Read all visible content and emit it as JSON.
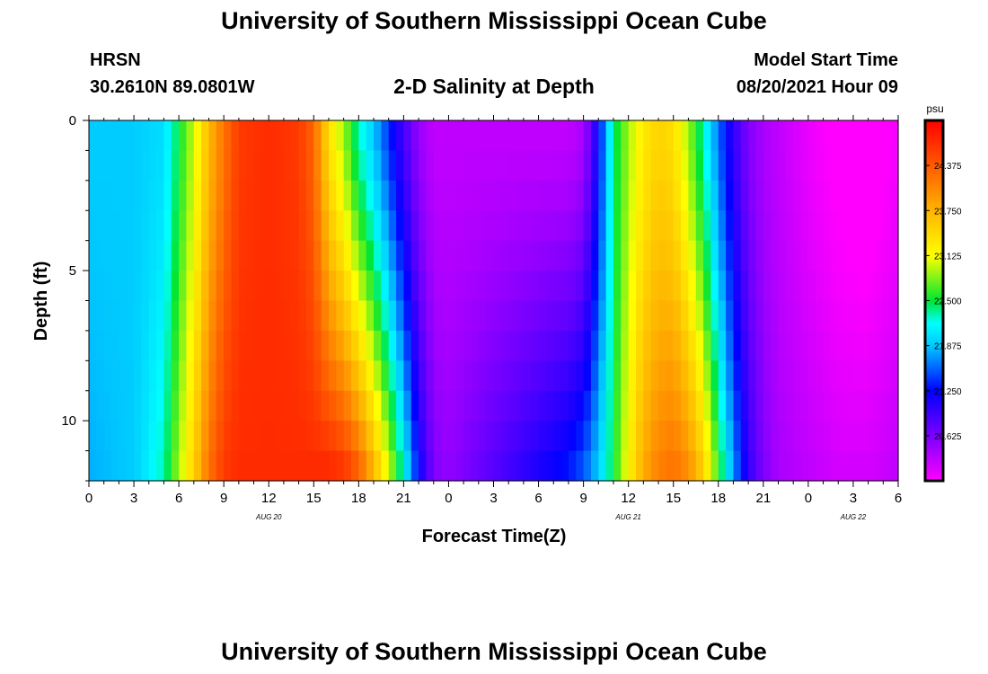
{
  "header": {
    "title": "University of Southern Mississippi Ocean Cube",
    "station": "HRSN",
    "coordinates": "30.2610N  89.0801W",
    "subtitle": "2-D Salinity at Depth",
    "start_label": "Model Start Time",
    "start_value": "08/20/2021 Hour 09"
  },
  "footer": {
    "title": "University of Southern Mississippi Ocean Cube"
  },
  "chart_data": {
    "type": "heatmap",
    "title": "2-D Salinity at Depth",
    "xlabel": "Forecast Time(Z)",
    "ylabel": "Depth (ft)",
    "x_range_hours": [
      0,
      54
    ],
    "x_ticks": [
      {
        "h": 0,
        "label": "0"
      },
      {
        "h": 3,
        "label": "3"
      },
      {
        "h": 6,
        "label": "6"
      },
      {
        "h": 9,
        "label": "9"
      },
      {
        "h": 12,
        "label": "12"
      },
      {
        "h": 15,
        "label": "15"
      },
      {
        "h": 18,
        "label": "18"
      },
      {
        "h": 21,
        "label": "21"
      },
      {
        "h": 24,
        "label": "0"
      },
      {
        "h": 27,
        "label": "3"
      },
      {
        "h": 30,
        "label": "6"
      },
      {
        "h": 33,
        "label": "9"
      },
      {
        "h": 36,
        "label": "12"
      },
      {
        "h": 39,
        "label": "15"
      },
      {
        "h": 42,
        "label": "18"
      },
      {
        "h": 45,
        "label": "21"
      },
      {
        "h": 48,
        "label": "0"
      },
      {
        "h": 51,
        "label": "3"
      },
      {
        "h": 54,
        "label": "6"
      }
    ],
    "day_labels": [
      {
        "h": 12,
        "label": "AUG 20"
      },
      {
        "h": 36,
        "label": "AUG 21"
      },
      {
        "h": 51,
        "label": "AUG 22"
      }
    ],
    "ylim": [
      0,
      12
    ],
    "y_ticks": [
      0,
      5,
      10
    ],
    "y_reversed": true,
    "colorbar": {
      "unit": "psu",
      "range": [
        20.0,
        25.0
      ],
      "tick_labels": [
        "24.375",
        "23.750",
        "23.125",
        "22.500",
        "21.875",
        "21.250",
        "20.625"
      ]
    },
    "depth_rows_ft": [
      0.5,
      1.5,
      2.5,
      3.5,
      4.5,
      5.5,
      6.5,
      7.5,
      8.5,
      9.5,
      10.5,
      11.5
    ],
    "profile": {
      "hours": [
        0,
        3,
        5,
        6,
        7,
        8,
        9,
        10,
        12,
        14,
        15,
        16,
        17,
        18,
        19,
        20,
        21,
        22,
        23,
        24,
        27,
        30,
        32,
        33,
        34,
        35,
        36,
        37,
        38,
        39,
        40,
        41,
        42,
        43,
        44,
        45,
        46,
        48,
        50,
        52,
        54
      ],
      "surface_psu": [
        21.9,
        21.9,
        22.0,
        22.5,
        23.0,
        23.7,
        24.2,
        24.6,
        24.7,
        24.6,
        24.3,
        23.4,
        22.9,
        22.3,
        21.9,
        21.4,
        20.9,
        20.5,
        20.3,
        20.3,
        20.3,
        20.3,
        20.3,
        20.4,
        21.2,
        22.4,
        22.9,
        23.3,
        23.5,
        23.4,
        22.9,
        22.3,
        21.6,
        21.0,
        20.6,
        20.4,
        20.3,
        20.1,
        19.95,
        19.9,
        20.05
      ],
      "bottom_psu": [
        21.8,
        21.9,
        22.3,
        22.9,
        23.5,
        24.2,
        24.6,
        24.7,
        24.7,
        24.7,
        24.7,
        24.7,
        24.6,
        24.3,
        23.7,
        23.0,
        22.2,
        21.2,
        20.6,
        20.5,
        20.8,
        21.1,
        21.3,
        21.5,
        21.9,
        22.5,
        23.2,
        23.8,
        24.1,
        24.2,
        24.0,
        23.5,
        22.6,
        21.7,
        21.0,
        20.6,
        20.4,
        20.3,
        20.2,
        20.2,
        20.3
      ]
    }
  }
}
